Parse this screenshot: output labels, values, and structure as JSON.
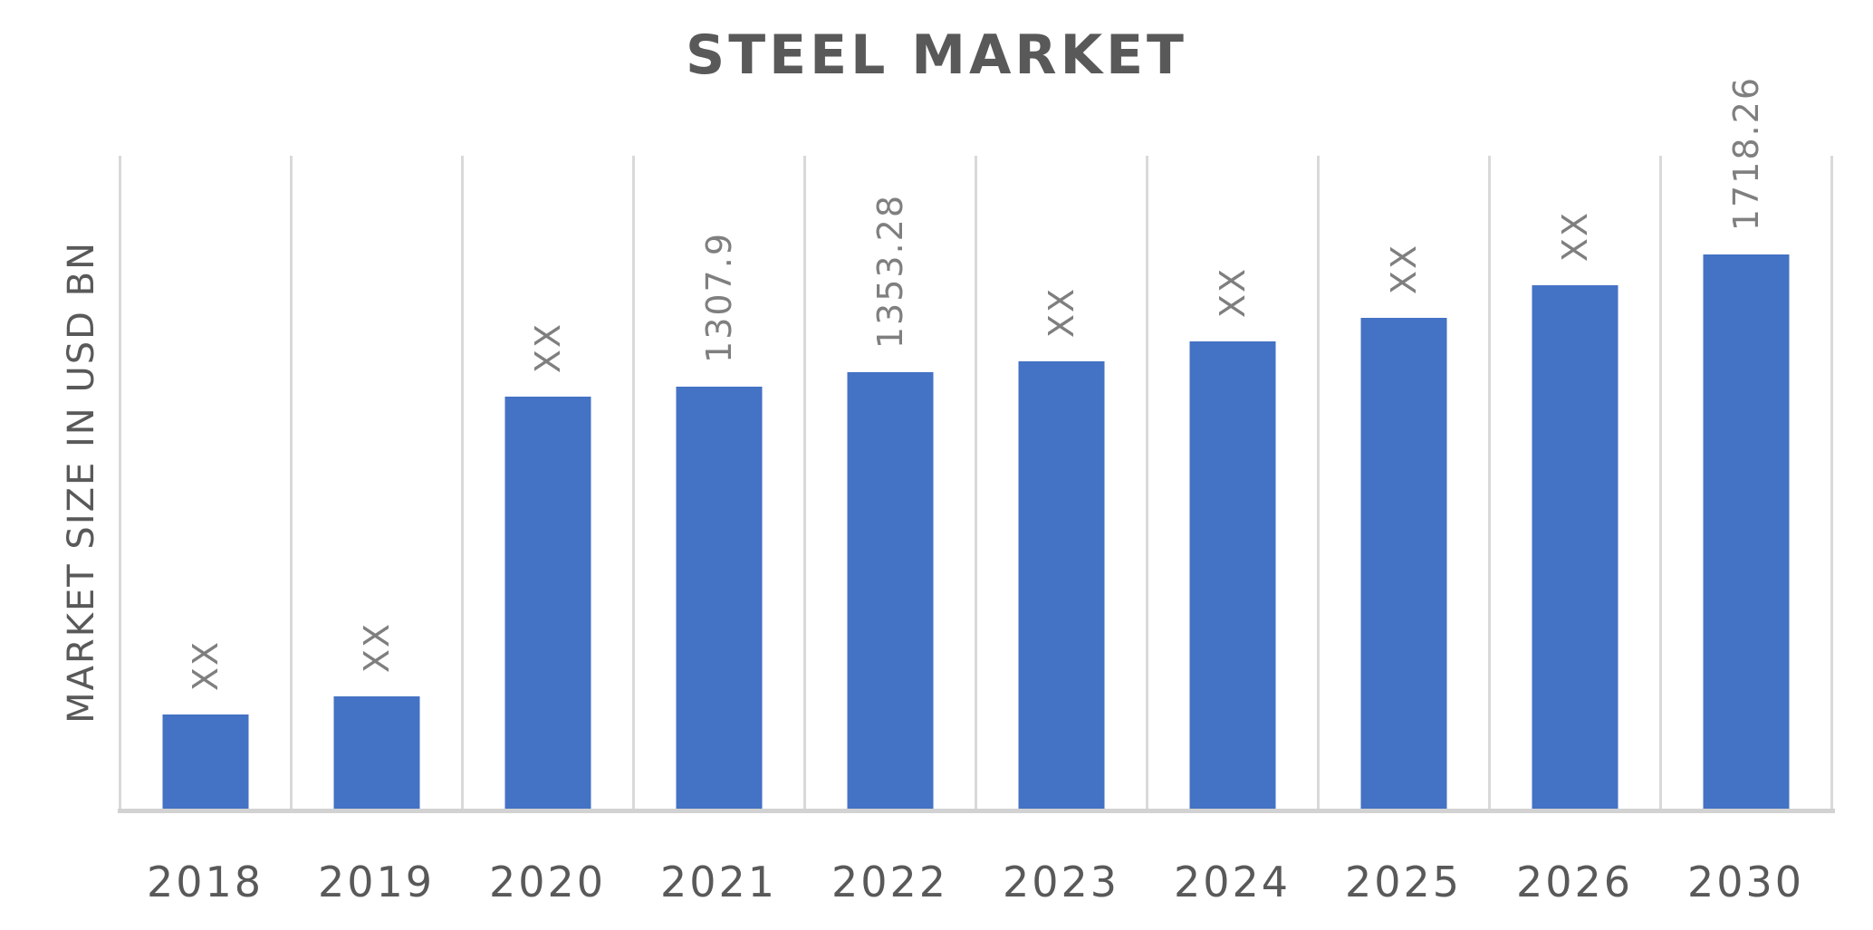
{
  "chart_data": {
    "type": "bar",
    "title": "STEEL MARKET",
    "ylabel": "MARKET SIZE IN USD BN",
    "xlabel": "",
    "categories": [
      "2018",
      "2019",
      "2020",
      "2021",
      "2022",
      "2023",
      "2024",
      "2025",
      "2026",
      "2030"
    ],
    "series": [
      {
        "name": "Market size in USD BN",
        "values": [
          292,
          348,
          1277,
          1307.9,
          1353.28,
          1387,
          1449,
          1522,
          1623,
          1718.26
        ]
      }
    ],
    "display_labels": [
      "XX",
      "XX",
      "XX",
      "1307.9",
      "1353.28",
      "XX",
      "XX",
      "XX",
      "XX",
      "1718.26"
    ],
    "ylim": [
      0,
      2025
    ],
    "grid": "vertical-gridlines-only",
    "legend": "none",
    "label_rotation_degrees": -90,
    "colors": {
      "bar": "#4472c4",
      "title_text": "#595959",
      "axis_text": "#595959",
      "data_label_text": "#7f7f7f",
      "gridline": "#d9d9d9",
      "axis_line": "#d2d2d2",
      "background": "#ffffff"
    }
  }
}
